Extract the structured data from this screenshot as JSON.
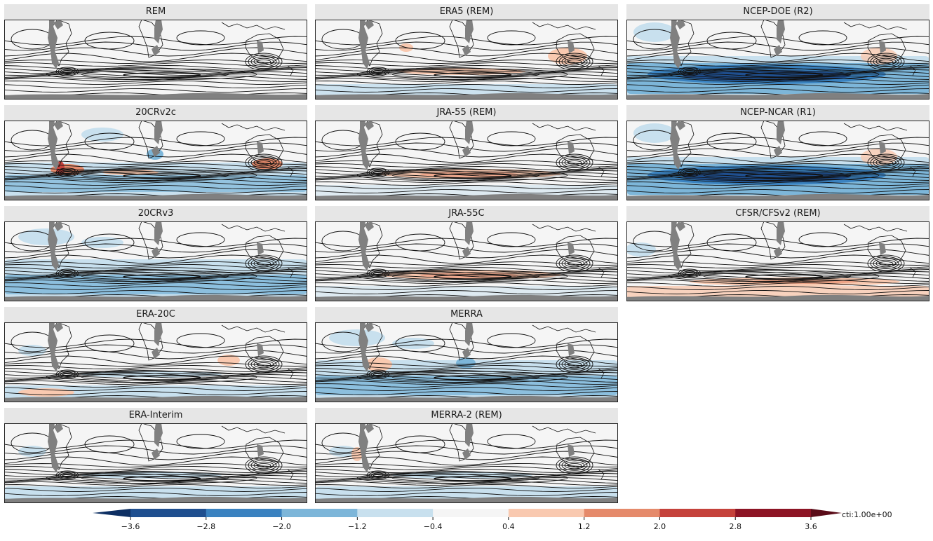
{
  "figure": {
    "panels": [
      {
        "title": "REM",
        "anomaly": "neutral"
      },
      {
        "title": "ERA5 (REM)",
        "anomaly": "weak-warm"
      },
      {
        "title": "NCEP-DOE (R2)",
        "anomaly": "strong-cool"
      },
      {
        "title": "20CRv2c",
        "anomaly": "mixed"
      },
      {
        "title": "JRA-55 (REM)",
        "anomaly": "warm-band"
      },
      {
        "title": "NCEP-NCAR (R1)",
        "anomaly": "strong-cool"
      },
      {
        "title": "20CRv3",
        "anomaly": "cool"
      },
      {
        "title": "JRA-55C",
        "anomaly": "warm-band"
      },
      {
        "title": "CFSR/CFSv2 (REM)",
        "anomaly": "warm-south"
      },
      {
        "title": "ERA-20C",
        "anomaly": "weak-cool"
      },
      {
        "title": "MERRA",
        "anomaly": "cool"
      },
      {
        "title": "ERA-Interim",
        "anomaly": "weak-cool"
      },
      {
        "title": "MERRA-2 (REM)",
        "anomaly": "weak-cool"
      }
    ]
  },
  "colorbar": {
    "ticks": [
      "−3.6",
      "−2.8",
      "−2.0",
      "−1.2",
      "−0.4",
      "0.4",
      "1.2",
      "2.0",
      "2.8",
      "3.6"
    ],
    "colors": [
      "#1f4f8f",
      "#3a82c0",
      "#7db6d9",
      "#c8e0ee",
      "#f5f5f5",
      "#f9c9b0",
      "#e58a6b",
      "#c5423b",
      "#8d1425"
    ],
    "under_color": "#0d2f63",
    "over_color": "#5a0c18",
    "label": "cti:1.00e+00"
  }
}
